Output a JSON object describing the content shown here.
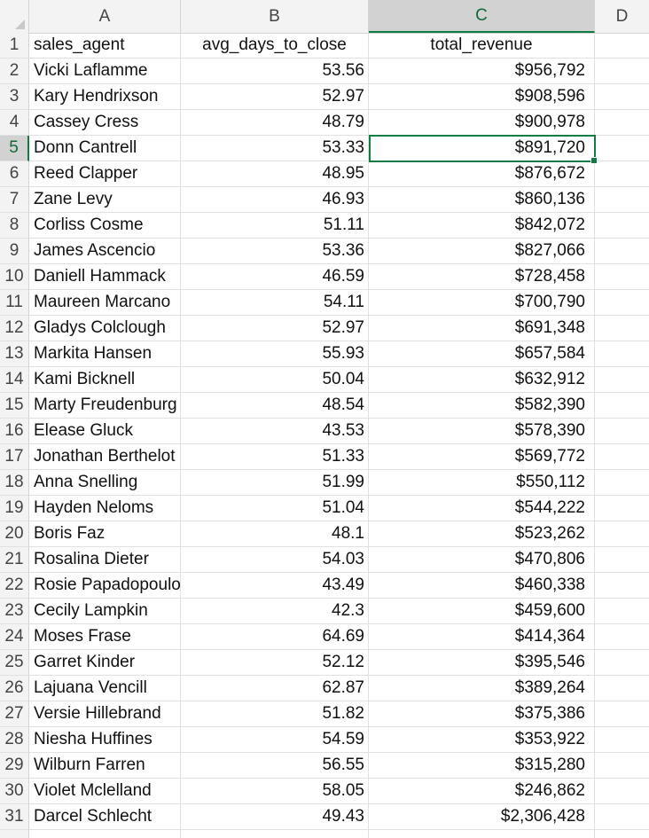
{
  "columns": [
    "A",
    "B",
    "C",
    "D"
  ],
  "header_row": {
    "num": "1",
    "a": "sales_agent",
    "b": "avg_days_to_close",
    "c": "total_revenue"
  },
  "rows": [
    {
      "num": "2",
      "agent": "Vicki Laflamme",
      "days": "53.56",
      "revenue": "$956,792"
    },
    {
      "num": "3",
      "agent": "Kary Hendrixson",
      "days": "52.97",
      "revenue": "$908,596"
    },
    {
      "num": "4",
      "agent": "Cassey Cress",
      "days": "48.79",
      "revenue": "$900,978"
    },
    {
      "num": "5",
      "agent": "Donn Cantrell",
      "days": "53.33",
      "revenue": "$891,720"
    },
    {
      "num": "6",
      "agent": "Reed Clapper",
      "days": "48.95",
      "revenue": "$876,672"
    },
    {
      "num": "7",
      "agent": "Zane Levy",
      "days": "46.93",
      "revenue": "$860,136"
    },
    {
      "num": "8",
      "agent": "Corliss Cosme",
      "days": "51.11",
      "revenue": "$842,072"
    },
    {
      "num": "9",
      "agent": "James Ascencio",
      "days": "53.36",
      "revenue": "$827,066"
    },
    {
      "num": "10",
      "agent": "Daniell Hammack",
      "days": "46.59",
      "revenue": "$728,458"
    },
    {
      "num": "11",
      "agent": "Maureen Marcano",
      "days": "54.11",
      "revenue": "$700,790"
    },
    {
      "num": "12",
      "agent": "Gladys Colclough",
      "days": "52.97",
      "revenue": "$691,348"
    },
    {
      "num": "13",
      "agent": "Markita Hansen",
      "days": "55.93",
      "revenue": "$657,584"
    },
    {
      "num": "14",
      "agent": "Kami Bicknell",
      "days": "50.04",
      "revenue": "$632,912"
    },
    {
      "num": "15",
      "agent": "Marty Freudenburg",
      "days": "48.54",
      "revenue": "$582,390"
    },
    {
      "num": "16",
      "agent": "Elease Gluck",
      "days": "43.53",
      "revenue": "$578,390"
    },
    {
      "num": "17",
      "agent": "Jonathan Berthelot",
      "days": "51.33",
      "revenue": "$569,772"
    },
    {
      "num": "18",
      "agent": "Anna Snelling",
      "days": "51.99",
      "revenue": "$550,112"
    },
    {
      "num": "19",
      "agent": "Hayden Neloms",
      "days": "51.04",
      "revenue": "$544,222"
    },
    {
      "num": "20",
      "agent": "Boris Faz",
      "days": "48.1",
      "revenue": "$523,262"
    },
    {
      "num": "21",
      "agent": "Rosalina Dieter",
      "days": "54.03",
      "revenue": "$470,806"
    },
    {
      "num": "22",
      "agent": "Rosie Papadopoulos",
      "days": "43.49",
      "revenue": "$460,338"
    },
    {
      "num": "23",
      "agent": "Cecily Lampkin",
      "days": "42.3",
      "revenue": "$459,600"
    },
    {
      "num": "24",
      "agent": "Moses Frase",
      "days": "64.69",
      "revenue": "$414,364"
    },
    {
      "num": "25",
      "agent": "Garret Kinder",
      "days": "52.12",
      "revenue": "$395,546"
    },
    {
      "num": "26",
      "agent": "Lajuana Vencill",
      "days": "62.87",
      "revenue": "$389,264"
    },
    {
      "num": "27",
      "agent": "Versie Hillebrand",
      "days": "51.82",
      "revenue": "$375,386"
    },
    {
      "num": "28",
      "agent": "Niesha Huffines",
      "days": "54.59",
      "revenue": "$353,922"
    },
    {
      "num": "29",
      "agent": "Wilburn Farren",
      "days": "56.55",
      "revenue": "$315,280"
    },
    {
      "num": "30",
      "agent": "Violet Mclelland",
      "days": "58.05",
      "revenue": "$246,862"
    },
    {
      "num": "31",
      "agent": "Darcel Schlecht",
      "days": "49.43",
      "revenue": "$2,306,428"
    }
  ],
  "active_cell": "C5",
  "colors": {
    "selection": "#107c41",
    "header_bg": "#f3f3f3",
    "gridline": "#e1e1e1"
  }
}
